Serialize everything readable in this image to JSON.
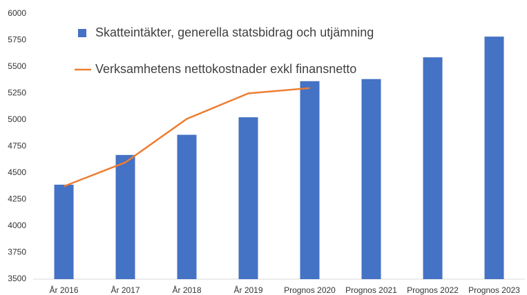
{
  "chart_data": {
    "type": "bar",
    "categories": [
      "År 2016",
      "År 2017",
      "År 2018",
      "År 2019",
      "Prognos 2020",
      "Prognos 2021",
      "Prognos 2022",
      "Prognos 2023"
    ],
    "series": [
      {
        "name": "Skatteintäkter, generella statsbidrag och utjämning",
        "type": "bar",
        "color": "#4472c4",
        "values": [
          4390,
          4670,
          4860,
          5025,
          5365,
          5385,
          5590,
          5785
        ]
      },
      {
        "name": "Verksamhetens nettokostnader exkl finansnetto",
        "type": "line",
        "color": "#ed7d31",
        "values": [
          4375,
          4600,
          5010,
          5250,
          5300,
          null,
          null,
          null
        ]
      }
    ],
    "ylim": [
      3500,
      6000
    ],
    "yticks": [
      3500,
      3750,
      4000,
      4250,
      4500,
      4750,
      5000,
      5250,
      5500,
      5750,
      6000
    ],
    "grid": false,
    "legend": "top-left"
  }
}
